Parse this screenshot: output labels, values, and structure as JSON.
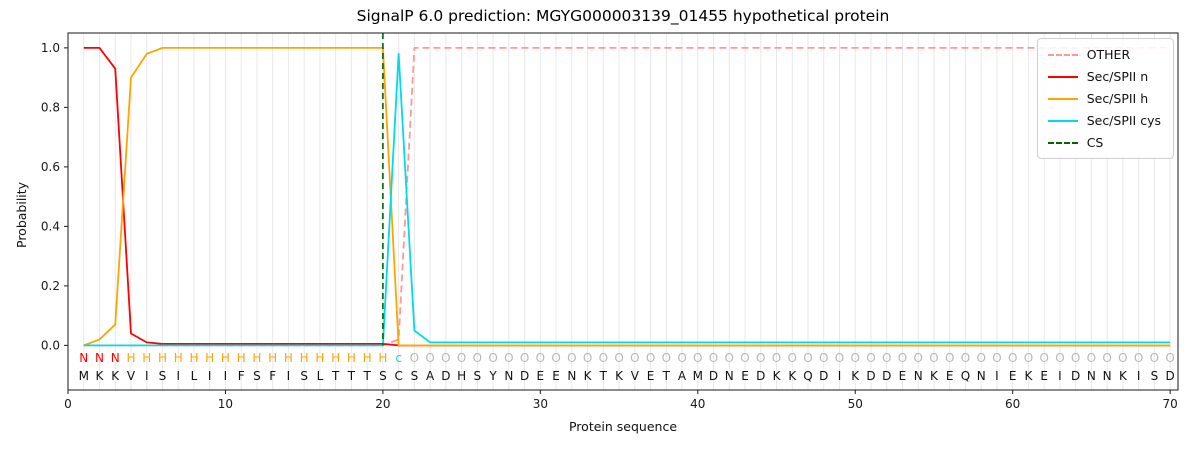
{
  "title": "SignalP 6.0 prediction: MGYG000003139_01455 hypothetical protein",
  "axes": {
    "xlabel": "Protein sequence",
    "ylabel": "Probability"
  },
  "colors": {
    "other": "#ff9896",
    "n": "#ff0000",
    "h": "#ffa500",
    "cys": "#00dce6",
    "cs": "#006400",
    "grid": "#e8e8e8",
    "spine": "#1a1a1a",
    "region_other_label": "#b8b8b8",
    "residue_text": "#111111",
    "tick_text": "#1a1a1a"
  },
  "legend": {
    "position": "upper right",
    "items": [
      {
        "label": "OTHER",
        "color": "#ff9896",
        "dash": true
      },
      {
        "label": "Sec/SPII n",
        "color": "#ff0000",
        "dash": false
      },
      {
        "label": "Sec/SPII h",
        "color": "#ffa500",
        "dash": false
      },
      {
        "label": "Sec/SPII cys",
        "color": "#00dce6",
        "dash": false
      },
      {
        "label": "CS",
        "color": "#006400",
        "dash": true
      }
    ]
  },
  "chart_data": {
    "type": "line",
    "title": "SignalP 6.0 prediction: MGYG000003139_01455 hypothetical protein",
    "xlabel": "Protein sequence",
    "ylabel": "Probability",
    "xlim": [
      0,
      70.5
    ],
    "ylim": [
      -0.15,
      1.05
    ],
    "grid": "vertical line at every residue position",
    "x_ticks": [
      0,
      10,
      20,
      30,
      40,
      50,
      60,
      70
    ],
    "x_tick_labels": [
      "0",
      "10",
      "20",
      "30",
      "40",
      "50",
      "60",
      "70"
    ],
    "y_ticks": [
      0,
      0.2,
      0.4,
      0.6,
      0.8,
      1.0
    ],
    "y_tick_labels": [
      "0.0",
      "0.2",
      "0.4",
      "0.6",
      "0.8",
      "1.0"
    ],
    "x": [
      1,
      2,
      3,
      4,
      5,
      6,
      7,
      8,
      9,
      10,
      11,
      12,
      13,
      14,
      15,
      16,
      17,
      18,
      19,
      20,
      21,
      22,
      23,
      24,
      25,
      26,
      27,
      28,
      29,
      30,
      31,
      32,
      33,
      34,
      35,
      36,
      37,
      38,
      39,
      40,
      41,
      42,
      43,
      44,
      45,
      46,
      47,
      48,
      49,
      50,
      51,
      52,
      53,
      54,
      55,
      56,
      57,
      58,
      59,
      60,
      61,
      62,
      63,
      64,
      65,
      66,
      67,
      68,
      69,
      70
    ],
    "series": [
      {
        "name": "OTHER",
        "color": "#ff9896",
        "dash": true,
        "values": [
          0,
          0,
          0,
          0,
          0,
          0,
          0,
          0,
          0,
          0,
          0,
          0,
          0,
          0,
          0,
          0,
          0,
          0,
          0,
          0,
          0.02,
          1,
          1,
          1,
          1,
          1,
          1,
          1,
          1,
          1,
          1,
          1,
          1,
          1,
          1,
          1,
          1,
          1,
          1,
          1,
          1,
          1,
          1,
          1,
          1,
          1,
          1,
          1,
          1,
          1,
          1,
          1,
          1,
          1,
          1,
          1,
          1,
          1,
          1,
          1,
          1,
          1,
          1,
          1,
          1,
          1,
          1,
          1,
          1,
          1
        ]
      },
      {
        "name": "Sec/SPII n",
        "color": "#ff0000",
        "dash": false,
        "values": [
          1,
          1,
          0.93,
          0.04,
          0.01,
          0.005,
          0.005,
          0.005,
          0.005,
          0.005,
          0.005,
          0.005,
          0.005,
          0.005,
          0.005,
          0.005,
          0.005,
          0.005,
          0.005,
          0.005,
          0,
          0,
          0,
          0,
          0,
          0,
          0,
          0,
          0,
          0,
          0,
          0,
          0,
          0,
          0,
          0,
          0,
          0,
          0,
          0,
          0,
          0,
          0,
          0,
          0,
          0,
          0,
          0,
          0,
          0,
          0,
          0,
          0,
          0,
          0,
          0,
          0,
          0,
          0,
          0,
          0,
          0,
          0,
          0,
          0,
          0,
          0,
          0,
          0,
          0
        ]
      },
      {
        "name": "Sec/SPII h",
        "color": "#ffa500",
        "dash": false,
        "values": [
          0,
          0.02,
          0.07,
          0.9,
          0.98,
          1,
          1,
          1,
          1,
          1,
          1,
          1,
          1,
          1,
          1,
          1,
          1,
          1,
          1,
          1,
          0,
          0,
          0,
          0,
          0,
          0,
          0,
          0,
          0,
          0,
          0,
          0,
          0,
          0,
          0,
          0,
          0,
          0,
          0,
          0,
          0,
          0,
          0,
          0,
          0,
          0,
          0,
          0,
          0,
          0,
          0,
          0,
          0,
          0,
          0,
          0,
          0,
          0,
          0,
          0,
          0,
          0,
          0,
          0,
          0,
          0,
          0,
          0,
          0,
          0
        ]
      },
      {
        "name": "Sec/SPII cys",
        "color": "#00dce6",
        "dash": false,
        "values": [
          0,
          0,
          0,
          0,
          0,
          0,
          0,
          0,
          0,
          0,
          0,
          0,
          0,
          0,
          0,
          0,
          0,
          0,
          0,
          0,
          0.98,
          0.05,
          0.01,
          0.01,
          0.01,
          0.01,
          0.01,
          0.01,
          0.01,
          0.01,
          0.01,
          0.01,
          0.01,
          0.01,
          0.01,
          0.01,
          0.01,
          0.01,
          0.01,
          0.01,
          0.01,
          0.01,
          0.01,
          0.01,
          0.01,
          0.01,
          0.01,
          0.01,
          0.01,
          0.01,
          0.01,
          0.01,
          0.01,
          0.01,
          0.01,
          0.01,
          0.01,
          0.01,
          0.01,
          0.01,
          0.01,
          0.01,
          0.01,
          0.01,
          0.01,
          0.01,
          0.01,
          0.01,
          0.01,
          0.01
        ]
      }
    ],
    "cs_line": {
      "name": "CS",
      "x": 20,
      "color": "#006400",
      "dash": true
    },
    "sequence": {
      "residues": "MKKVISILIIFSFISLTTTSCSADHSYNDEENKTKVETAMDNEDKKQDIKDDENKEQNIEKEIDNNKISD",
      "region_labels": "NNNHHHHHHHHHHHHHHHHHcOOOOOOOOOOOOOOOOOOOOOOOOOOOOOOOOOOOOOOOOOOOOOOOOO"
    }
  }
}
